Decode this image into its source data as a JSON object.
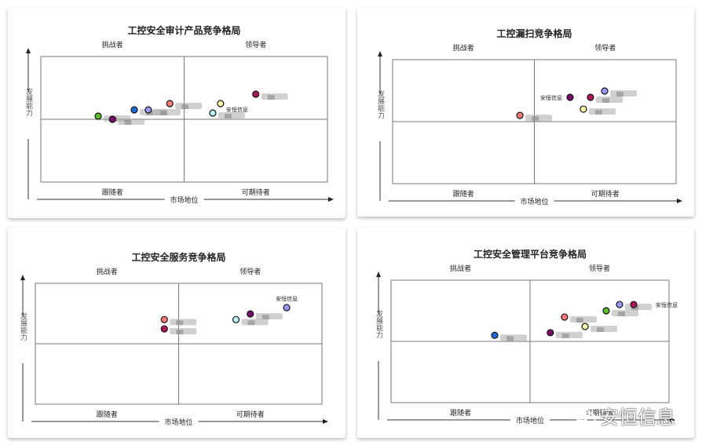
{
  "chart_data": [
    {
      "type": "scatter",
      "title": "工控安全审计产品竞争格局",
      "xlabel": "市场地位",
      "ylabel": "发展能力",
      "quadrants": {
        "top_left": "挑战者",
        "top_right": "领导者",
        "bottom_left": "跟随者",
        "bottom_right": "可期待者"
      },
      "xlim": [
        0,
        100
      ],
      "ylim": [
        0,
        100
      ],
      "grid": false,
      "points": [
        {
          "x": 20,
          "y": 52.5,
          "color": "#5cbf2a"
        },
        {
          "x": 25,
          "y": 50,
          "color": "#7b0a6e"
        },
        {
          "x": 32.6,
          "y": 57.5,
          "color": "#1a6fe0"
        },
        {
          "x": 37.5,
          "y": 57.5,
          "color": "#9999ff"
        },
        {
          "x": 45,
          "y": 62.5,
          "color": "#ff7a7a"
        },
        {
          "x": 62.7,
          "y": 62.5,
          "color": "#ffffaa",
          "label": "安恒信息",
          "label_pos": "below-right"
        },
        {
          "x": 60,
          "y": 55,
          "color": "#bbf5f5"
        },
        {
          "x": 75,
          "y": 70,
          "color": "#b0175b"
        }
      ]
    },
    {
      "type": "scatter",
      "title": "工控漏扫竞争格局",
      "xlabel": "市场地位",
      "ylabel": "发展能力",
      "quadrants": {
        "top_left": "挑战者",
        "top_right": "领导者",
        "bottom_left": "跟随者",
        "bottom_right": "可期待者"
      },
      "xlim": [
        0,
        100
      ],
      "ylim": [
        0,
        100
      ],
      "grid": false,
      "points": [
        {
          "x": 44.9,
          "y": 55,
          "color": "#ff7a7a"
        },
        {
          "x": 62.6,
          "y": 69.6,
          "color": "#7b0a6e",
          "label": "安恒信息",
          "label_pos": "left"
        },
        {
          "x": 69.8,
          "y": 69.6,
          "color": "#b0175b"
        },
        {
          "x": 74.8,
          "y": 74.7,
          "color": "#9999ff"
        },
        {
          "x": 67.3,
          "y": 60.1,
          "color": "#ffffaa"
        }
      ]
    },
    {
      "type": "scatter",
      "title": "工控安全服务竞争格局",
      "xlabel": "市场地位",
      "ylabel": "发展能力",
      "quadrants": {
        "top_left": "挑战者",
        "top_right": "领导者",
        "bottom_left": "跟随者",
        "bottom_right": "可期待者"
      },
      "xlim": [
        0,
        100
      ],
      "ylim": [
        0,
        100
      ],
      "grid": false,
      "points": [
        {
          "x": 45,
          "y": 70,
          "color": "#ff7a7a"
        },
        {
          "x": 45,
          "y": 62.3,
          "color": "#b0175b"
        },
        {
          "x": 75,
          "y": 74.7,
          "color": "#7b0a6e"
        },
        {
          "x": 70,
          "y": 70,
          "color": "#bbf5f5"
        },
        {
          "x": 87.7,
          "y": 79.9,
          "color": "#9999ff",
          "label": "安恒信息",
          "label_pos": "above"
        }
      ]
    },
    {
      "type": "scatter",
      "title": "工控安全管理平台竞争格局",
      "xlabel": "市场地位",
      "ylabel": "发展能力",
      "quadrants": {
        "top_left": "挑战者",
        "top_right": "领导者",
        "bottom_left": "跟随者",
        "bottom_right": "可期待者"
      },
      "xlim": [
        0,
        100
      ],
      "ylim": [
        0,
        100
      ],
      "grid": false,
      "points": [
        {
          "x": 37.3,
          "y": 55,
          "color": "#1a6fe0"
        },
        {
          "x": 62.4,
          "y": 69.9,
          "color": "#ff7a7a"
        },
        {
          "x": 57.3,
          "y": 57.1,
          "color": "#7b0a6e"
        },
        {
          "x": 69.8,
          "y": 62.2,
          "color": "#ffffaa"
        },
        {
          "x": 77.4,
          "y": 75,
          "color": "#5cbf2a"
        },
        {
          "x": 82.2,
          "y": 80.1,
          "color": "#9999ff"
        },
        {
          "x": 87.3,
          "y": 80.1,
          "color": "#b0175b",
          "label": "安恒信息",
          "label_pos": "far-right"
        }
      ]
    }
  ],
  "watermark": {
    "text": "安恒信息",
    "icon": "wechat-icon"
  }
}
